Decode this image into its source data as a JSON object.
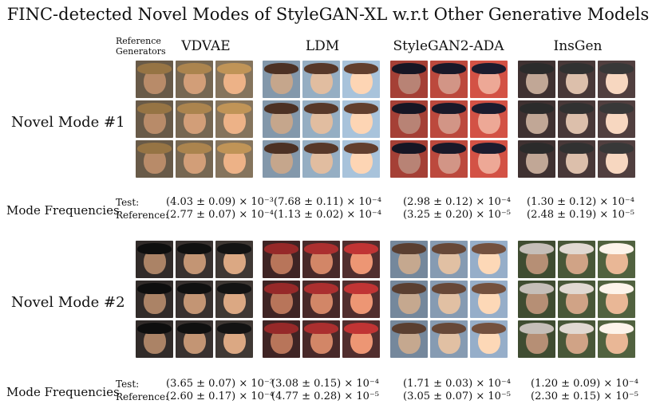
{
  "title": "FINC-detected Novel Modes of StyleGAN-XL w.r.t Other Generative Models",
  "reference_label_line1": "Reference",
  "reference_label_line2": "Generators",
  "generators": [
    "VDVAE",
    "LDM",
    "StyleGAN2-ADA",
    "InsGen"
  ],
  "modes": [
    {
      "label": "Novel Mode #1",
      "freq_label": "Mode Frequencies",
      "test_label": "Test:",
      "ref_label": "Reference:",
      "test": [
        "(4.03 ± 0.09) × 10⁻³",
        "(7.68 ± 0.11) × 10⁻⁴",
        "(2.98 ± 0.12) × 10⁻⁴",
        "(1.30 ± 0.12) × 10⁻⁴"
      ],
      "ref": [
        "(2.77 ± 0.07) × 10⁻⁴",
        "(1.13 ± 0.02) × 10⁻⁴",
        "(3.25 ± 0.20) × 10⁻⁵",
        "(2.48 ± 0.19) × 10⁻⁵"
      ]
    },
    {
      "label": "Novel Mode #2",
      "freq_label": "Mode Frequencies",
      "test_label": "Test:",
      "ref_label": "Reference:",
      "test": [
        "(3.65 ± 0.07) × 10⁻³",
        "(3.08 ± 0.15) × 10⁻⁴",
        "(1.71 ± 0.03) × 10⁻⁴",
        "(1.20 ± 0.09) × 10⁻⁴"
      ],
      "ref": [
        "(2.60 ± 0.17) × 10⁻⁴",
        "(4.77 ± 0.28) × 10⁻⁵",
        "(3.05 ± 0.07) × 10⁻⁵",
        "(2.30 ± 0.15) × 10⁻⁵"
      ]
    }
  ],
  "palettes": {
    "mode1": [
      {
        "bg": "#7a6a55",
        "skin": "#d9a37c",
        "hat": "#b08850"
      },
      {
        "bg": "#9ab3c9",
        "skin": "#e8c3a5",
        "hat": "#5a3a2a"
      },
      {
        "bg": "#c24b3f",
        "skin": "#d99a8a",
        "hat": "#1a1a2a"
      },
      {
        "bg": "#4a3a3a",
        "skin": "#e3c5b0",
        "hat": "#333"
      }
    ],
    "mode2": [
      {
        "bg": "#3a3330",
        "skin": "#c99a78",
        "hat": "#111"
      },
      {
        "bg": "#4a2a2a",
        "skin": "#d98a6a",
        "hat": "#b03030"
      },
      {
        "bg": "#8aa0b8",
        "skin": "#e8c6a8",
        "hat": "#6a4a3a"
      },
      {
        "bg": "#4a5a3a",
        "skin": "#d6a88a",
        "hat": "#e8e0d8"
      }
    ]
  }
}
